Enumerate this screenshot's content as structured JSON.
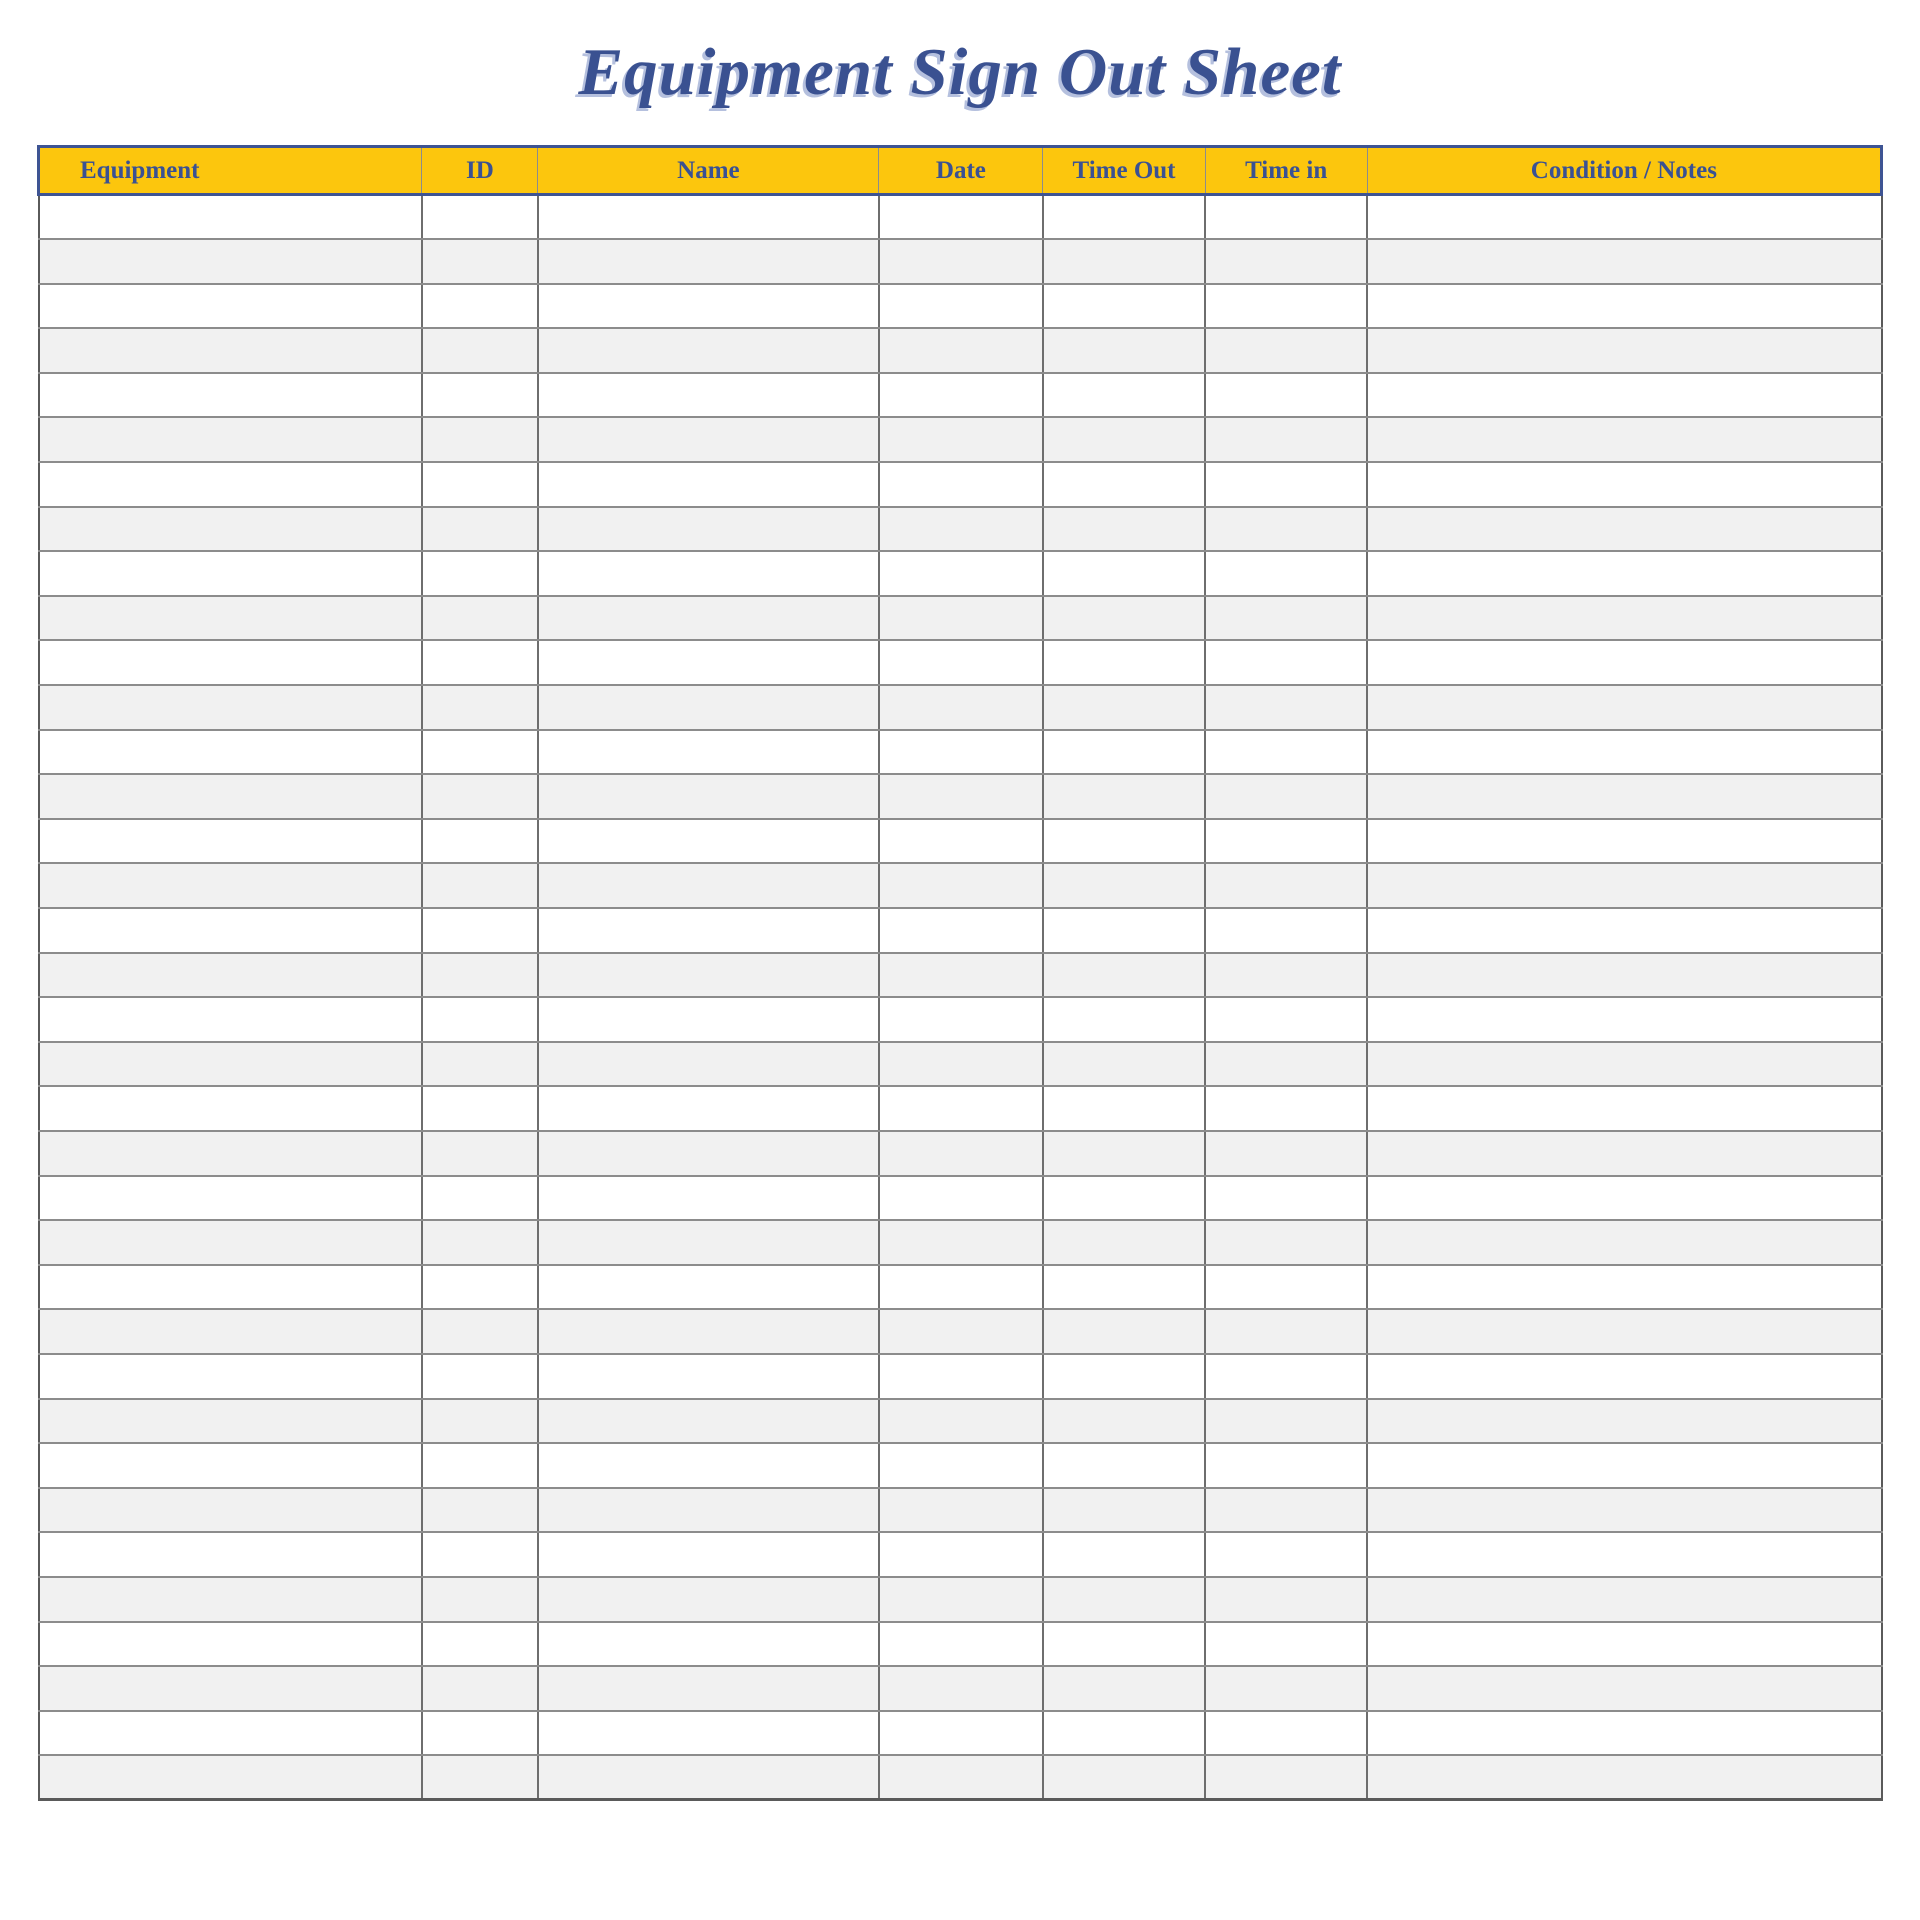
{
  "page": {
    "title": "Equipment Sign Out Sheet"
  },
  "table": {
    "columns": [
      {
        "key": "equipment",
        "label": "Equipment",
        "width_pct": 20.8,
        "align": "left"
      },
      {
        "key": "id",
        "label": "ID",
        "width_pct": 6.3,
        "align": "center"
      },
      {
        "key": "name",
        "label": "Name",
        "width_pct": 18.5,
        "align": "center"
      },
      {
        "key": "date",
        "label": "Date",
        "width_pct": 8.9,
        "align": "center"
      },
      {
        "key": "time-out",
        "label": "Time Out",
        "width_pct": 8.8,
        "align": "center"
      },
      {
        "key": "time-in",
        "label": "Time in",
        "width_pct": 8.8,
        "align": "center"
      },
      {
        "key": "condition-notes",
        "label": "Condition / Notes",
        "width_pct": 27.9,
        "align": "center"
      }
    ],
    "row_count": 36,
    "cell_value": ""
  },
  "colors": {
    "header_bg": "#fcc60d",
    "header_text": "#3a5193",
    "title_text": "#3a5191",
    "header_border": "#3e5493",
    "grid_line": "#8c8c8c",
    "outer_border": "#5a5a5a",
    "row_bg": "#ffffff",
    "row_alt_bg": "#f1f1f1"
  }
}
